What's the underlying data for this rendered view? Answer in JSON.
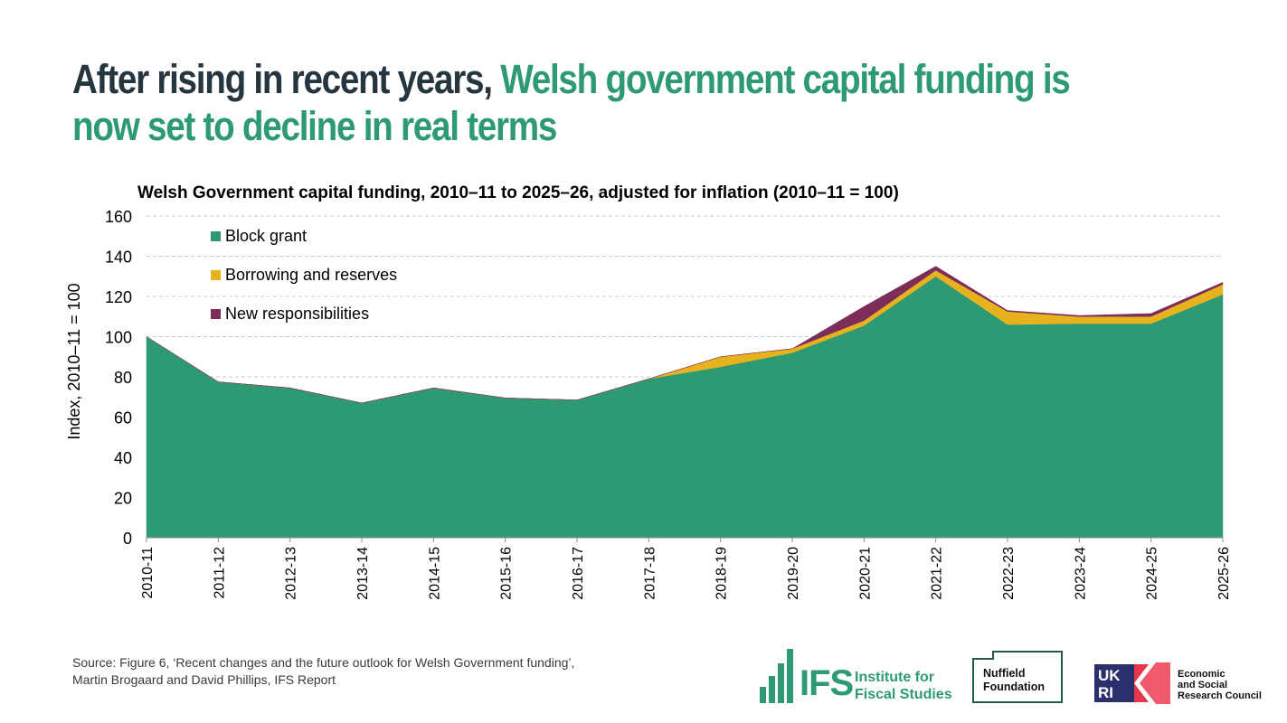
{
  "headline": {
    "part1": "After rising in recent years, ",
    "part2": "Welsh government capital funding is now set to decline in real terms"
  },
  "source": {
    "line1": "Source: Figure 6, ‘Recent changes and the future outlook for Welsh Government funding’,",
    "line2": "Martin Brogaard and David Phillips, IFS Report"
  },
  "logos": {
    "ifs_short": "IFS",
    "ifs_line1": "Institute for",
    "ifs_line2": "Fiscal Studies",
    "nuffield_line1": "Nuffield",
    "nuffield_line2": "Foundation",
    "ukri_line1": "Economic",
    "ukri_line2": "and Social",
    "ukri_line3": "Research Council"
  },
  "colors": {
    "block_grant": "#2e9a74",
    "borrowing": "#e8b21f",
    "new_responsibilities": "#7d2d5a",
    "grid": "#c8c8c8"
  },
  "chart_data": {
    "type": "area",
    "stacked": true,
    "title": "Welsh Government capital funding, 2010–11 to 2025–26, adjusted for inflation (2010–11 = 100)",
    "xlabel": "",
    "ylabel": "Index, 2010–11 = 100",
    "ylim": [
      0,
      160
    ],
    "yticks": [
      0,
      20,
      40,
      60,
      80,
      100,
      120,
      140,
      160
    ],
    "grid": true,
    "legend_position": "top-left",
    "categories": [
      "2010-11",
      "2011-12",
      "2012-13",
      "2013-14",
      "2014-15",
      "2015-16",
      "2016-17",
      "2017-18",
      "2018-19",
      "2019-20",
      "2020-21",
      "2021-22",
      "2022-23",
      "2023-24",
      "2024-25",
      "2025-26"
    ],
    "series": [
      {
        "name": "Block grant",
        "color": "#2e9a74",
        "values": [
          100,
          77.5,
          74.5,
          67,
          74.5,
          69.5,
          68.5,
          79,
          85,
          92,
          105.5,
          130,
          106,
          106.5,
          106.5,
          121
        ]
      },
      {
        "name": "Borrowing and reserves",
        "color": "#e8b21f",
        "values": [
          0,
          0,
          0,
          0,
          0,
          0,
          0,
          0,
          5,
          2,
          2.5,
          3,
          6.5,
          3.5,
          3.5,
          5
        ]
      },
      {
        "name": "New responsibilities",
        "color": "#7d2d5a",
        "values": [
          0,
          0,
          0,
          0,
          0,
          0,
          0,
          0,
          0,
          0,
          7,
          2,
          0.5,
          0.5,
          1.5,
          1
        ]
      }
    ]
  }
}
